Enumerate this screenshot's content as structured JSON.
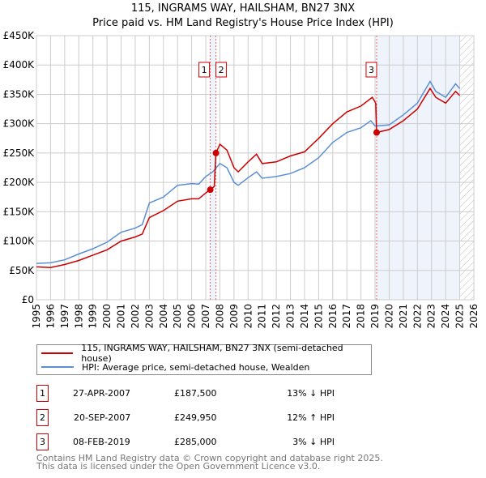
{
  "chart_data": {
    "type": "line",
    "title": "115, INGRAMS WAY, HAILSHAM, BN27 3NX",
    "subtitle": "Price paid vs. HM Land Registry's House Price Index (HPI)",
    "xlim": [
      1995,
      2026
    ],
    "ylim": [
      0,
      450000
    ],
    "x_ticks": [
      "1995",
      "1996",
      "1997",
      "1998",
      "1999",
      "2000",
      "2001",
      "2002",
      "2003",
      "2004",
      "2005",
      "2006",
      "2007",
      "2008",
      "2009",
      "2010",
      "2011",
      "2012",
      "2013",
      "2014",
      "2015",
      "2016",
      "2017",
      "2018",
      "2019",
      "2020",
      "2021",
      "2022",
      "2023",
      "2024",
      "2025",
      "2026"
    ],
    "y_ticks": [
      {
        "v": 0,
        "l": "£0"
      },
      {
        "v": 50000,
        "l": "£50K"
      },
      {
        "v": 100000,
        "l": "£100K"
      },
      {
        "v": 150000,
        "l": "£150K"
      },
      {
        "v": 200000,
        "l": "£200K"
      },
      {
        "v": 250000,
        "l": "£250K"
      },
      {
        "v": 300000,
        "l": "£300K"
      },
      {
        "v": 350000,
        "l": "£350K"
      },
      {
        "v": 400000,
        "l": "£400K"
      },
      {
        "v": 450000,
        "l": "£450K"
      }
    ],
    "grid": true,
    "series": [
      {
        "name": "115, INGRAMS WAY, HAILSHAM, BN27 3NX (semi-detached house)",
        "color": "#cc0000",
        "x": [
          1995,
          1996,
          1997,
          1998,
          1999,
          2000,
          2001,
          2002,
          2002.5,
          2003,
          2004,
          2005,
          2006,
          2006.5,
          2007,
          2007.32,
          2007.6,
          2007.72,
          2008,
          2008.5,
          2009,
          2009.3,
          2010,
          2010.6,
          2011,
          2012,
          2013,
          2014,
          2015,
          2016,
          2017,
          2018,
          2018.8,
          2019.05,
          2019.11,
          2020,
          2021,
          2022,
          2022.9,
          2023.3,
          2024,
          2024.7,
          2025
        ],
        "y": [
          56000,
          55000,
          60000,
          67000,
          76000,
          85000,
          100000,
          107000,
          112000,
          140000,
          152000,
          168000,
          172000,
          172000,
          182000,
          187500,
          193000,
          249950,
          265000,
          255000,
          225000,
          218000,
          235000,
          248000,
          232000,
          235000,
          245000,
          252000,
          275000,
          300000,
          320000,
          330000,
          345000,
          335000,
          285000,
          290000,
          305000,
          325000,
          360000,
          345000,
          335000,
          355000,
          348000
        ]
      },
      {
        "name": "HPI: Average price, semi-detached house, Wealden",
        "color": "#5b8fd4",
        "x": [
          1995,
          1996,
          1997,
          1998,
          1999,
          2000,
          2001,
          2002,
          2002.5,
          2003,
          2004,
          2005,
          2006,
          2006.5,
          2007,
          2007.5,
          2008,
          2008.5,
          2009,
          2009.3,
          2010,
          2010.6,
          2011,
          2012,
          2013,
          2014,
          2015,
          2016,
          2017,
          2018,
          2018.7,
          2019,
          2020,
          2021,
          2022,
          2022.9,
          2023.3,
          2024,
          2024.7,
          2025
        ],
        "y": [
          62000,
          63000,
          68000,
          78000,
          87000,
          98000,
          115000,
          122000,
          128000,
          165000,
          175000,
          195000,
          198000,
          197000,
          210000,
          218000,
          232000,
          225000,
          200000,
          195000,
          208000,
          218000,
          207000,
          210000,
          215000,
          225000,
          242000,
          268000,
          285000,
          293000,
          305000,
          296000,
          298000,
          315000,
          335000,
          372000,
          355000,
          345000,
          368000,
          360000
        ]
      }
    ],
    "sales": [
      {
        "n": "1",
        "x": 2007.32,
        "y": 187500
      },
      {
        "n": "2",
        "x": 2007.72,
        "y": 249950
      },
      {
        "n": "3",
        "x": 2019.11,
        "y": 285000
      }
    ],
    "shaded_from": 2019.11,
    "forecast_from": 2025
  },
  "legend": {
    "red": "115, INGRAMS WAY, HAILSHAM, BN27 3NX (semi-detached house)",
    "blue": "HPI: Average price, semi-detached house, Wealden"
  },
  "table": [
    {
      "n": "1",
      "date": "27-APR-2007",
      "price": "£187,500",
      "hpi": "13% ↓ HPI"
    },
    {
      "n": "2",
      "date": "20-SEP-2007",
      "price": "£249,950",
      "hpi": "12% ↑ HPI"
    },
    {
      "n": "3",
      "date": "08-FEB-2019",
      "price": "£285,000",
      "hpi": "3% ↓ HPI"
    }
  ],
  "footer": {
    "line1": "Contains HM Land Registry data © Crown copyright and database right 2025.",
    "line2": "This data is licensed under the Open Government Licence v3.0."
  }
}
